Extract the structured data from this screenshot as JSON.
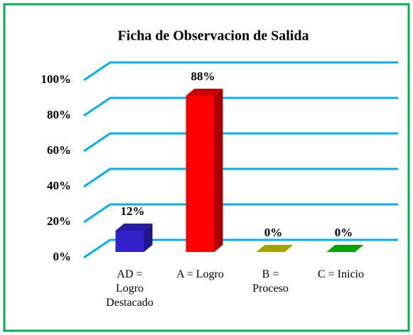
{
  "chart_data": {
    "type": "bar3d",
    "title": "Ficha de Observacion de Salida",
    "categories": [
      "AD = Logro Destacado",
      "A = Logro",
      "B = Proceso",
      "C = Inicio"
    ],
    "values": [
      12,
      88,
      0,
      0
    ],
    "value_labels": [
      "12%",
      "88%",
      "0%",
      "0%"
    ],
    "colors": [
      "#3322cc",
      "#ff0000",
      "#cccc00",
      "#00cc00"
    ],
    "ylim": [
      0,
      100
    ],
    "yticks": [
      {
        "value": 0,
        "label": "0%"
      },
      {
        "value": 20,
        "label": "20%"
      },
      {
        "value": 40,
        "label": "40%"
      },
      {
        "value": 60,
        "label": "60%"
      },
      {
        "value": 80,
        "label": "80%"
      },
      {
        "value": 100,
        "label": "100%"
      }
    ],
    "grid": true,
    "grid_color": "#00b0f0"
  }
}
